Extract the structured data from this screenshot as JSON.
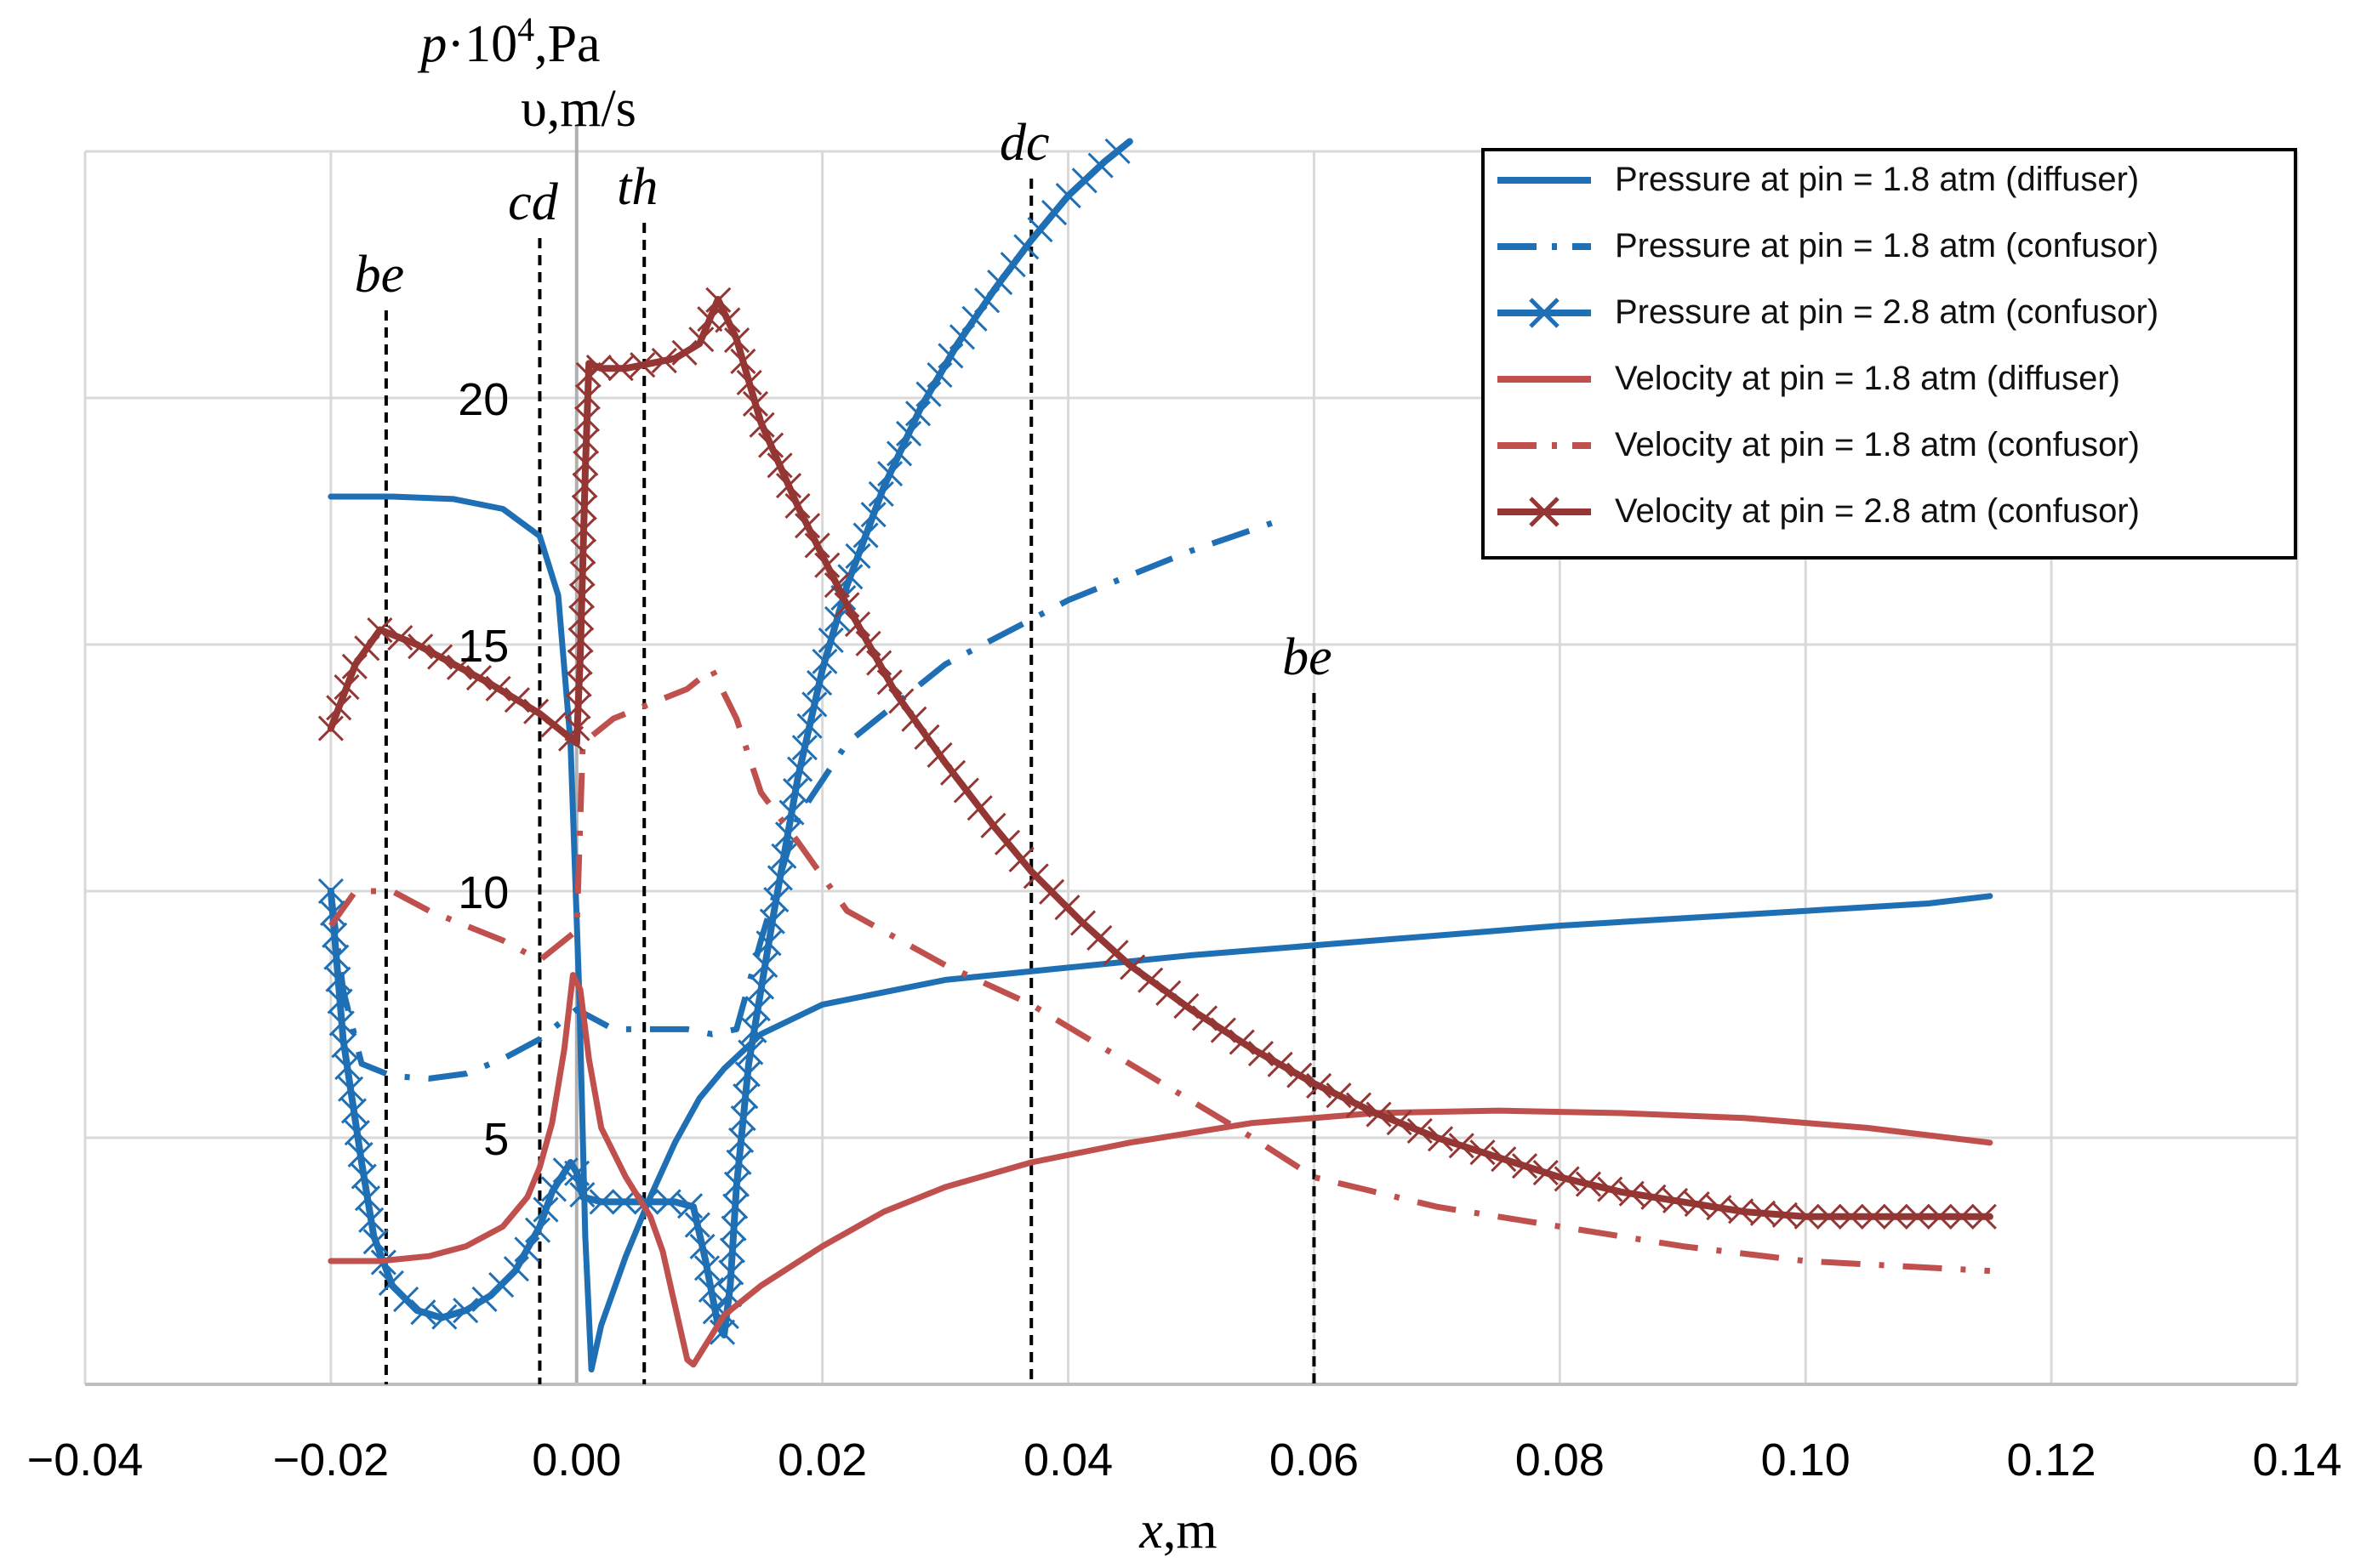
{
  "chart_data": {
    "type": "line",
    "xlabel": {
      "var": "x",
      "unit": ",m"
    },
    "ylabel": {
      "line1": {
        "var": "p",
        "mid": "·10",
        "sup": "4",
        "unit": ",Pa"
      },
      "line2": "υ,m/s"
    },
    "xlim": [
      -0.04,
      0.14
    ],
    "ylim": [
      0,
      25
    ],
    "x_ticks": [
      -0.04,
      -0.02,
      0.0,
      0.02,
      0.04,
      0.06,
      0.08,
      0.1,
      0.12,
      0.14
    ],
    "x_tick_labels": [
      "−0.04",
      "−0.02",
      "0.00",
      "0.02",
      "0.04",
      "0.06",
      "0.08",
      "0.10",
      "0.12",
      "0.14"
    ],
    "y_ticks": [
      5,
      10,
      15,
      20
    ],
    "y_tick_labels": [
      "5",
      "10",
      "15",
      "20"
    ],
    "grid": true,
    "legend_position": "top-right",
    "colors": {
      "blue": "#1f6fb4",
      "red": "#c0504d",
      "darkred": "#943634"
    },
    "annotations": [
      {
        "label": "be",
        "x": -0.0155
      },
      {
        "label": "cd",
        "x": -0.003
      },
      {
        "label": "th",
        "x": 0.0055
      },
      {
        "label": "dc",
        "x": 0.037
      },
      {
        "label": "be",
        "x": 0.06
      }
    ],
    "series": [
      {
        "name": "Pressure at pin = 1.8 atm (diffuser)",
        "color": "#1f6fb4",
        "style": "solid",
        "marker": "none",
        "points": [
          [
            -0.02,
            18.0
          ],
          [
            -0.015,
            18.0
          ],
          [
            -0.01,
            17.95
          ],
          [
            -0.006,
            17.75
          ],
          [
            -0.003,
            17.2
          ],
          [
            -0.0015,
            16.0
          ],
          [
            -0.0005,
            13.0
          ],
          [
            0.0002,
            8.0
          ],
          [
            0.0007,
            3.0
          ],
          [
            0.0012,
            0.3
          ],
          [
            0.002,
            1.2
          ],
          [
            0.004,
            2.6
          ],
          [
            0.006,
            3.8
          ],
          [
            0.008,
            4.9
          ],
          [
            0.01,
            5.8
          ],
          [
            0.012,
            6.4
          ],
          [
            0.015,
            7.1
          ],
          [
            0.02,
            7.7
          ],
          [
            0.03,
            8.2
          ],
          [
            0.04,
            8.45
          ],
          [
            0.05,
            8.7
          ],
          [
            0.06,
            8.9
          ],
          [
            0.07,
            9.1
          ],
          [
            0.08,
            9.3
          ],
          [
            0.09,
            9.45
          ],
          [
            0.1,
            9.6
          ],
          [
            0.11,
            9.75
          ],
          [
            0.115,
            9.9
          ]
        ]
      },
      {
        "name": "Pressure at pin = 1.8 atm (confusor)",
        "color": "#1f6fb4",
        "style": "dashdot",
        "marker": "none",
        "points": [
          [
            -0.02,
            10.0
          ],
          [
            -0.019,
            8.0
          ],
          [
            -0.0175,
            6.5
          ],
          [
            -0.015,
            6.25
          ],
          [
            -0.012,
            6.2
          ],
          [
            -0.009,
            6.3
          ],
          [
            -0.006,
            6.6
          ],
          [
            -0.003,
            7.0
          ],
          [
            0.0,
            7.6
          ],
          [
            0.003,
            7.2
          ],
          [
            0.006,
            7.2
          ],
          [
            0.009,
            7.2
          ],
          [
            0.011,
            7.1
          ],
          [
            0.013,
            7.2
          ],
          [
            0.015,
            9.0
          ],
          [
            0.018,
            11.5
          ],
          [
            0.022,
            13.0
          ],
          [
            0.03,
            14.6
          ],
          [
            0.04,
            15.9
          ],
          [
            0.05,
            16.9
          ],
          [
            0.057,
            17.5
          ]
        ]
      },
      {
        "name": "Pressure at pin = 2.8 atm (confusor)",
        "color": "#1f6fb4",
        "style": "solid",
        "marker": "x",
        "points": [
          [
            -0.02,
            10.0
          ],
          [
            -0.019,
            7.0
          ],
          [
            -0.0175,
            4.5
          ],
          [
            -0.0165,
            3.0
          ],
          [
            -0.015,
            2.0
          ],
          [
            -0.013,
            1.5
          ],
          [
            -0.011,
            1.35
          ],
          [
            -0.009,
            1.5
          ],
          [
            -0.007,
            1.8
          ],
          [
            -0.005,
            2.3
          ],
          [
            -0.003,
            3.2
          ],
          [
            -0.002,
            3.9
          ],
          [
            -0.001,
            4.3
          ],
          [
            -0.0005,
            4.5
          ],
          [
            0.0,
            4.3
          ],
          [
            0.0005,
            3.8
          ],
          [
            0.002,
            3.7
          ],
          [
            0.004,
            3.7
          ],
          [
            0.006,
            3.7
          ],
          [
            0.008,
            3.7
          ],
          [
            0.0095,
            3.6
          ],
          [
            0.0105,
            2.5
          ],
          [
            0.0115,
            1.2
          ],
          [
            0.012,
            1.0
          ],
          [
            0.0125,
            2.0
          ],
          [
            0.013,
            4.0
          ],
          [
            0.014,
            6.5
          ],
          [
            0.016,
            9.5
          ],
          [
            0.018,
            12.3
          ],
          [
            0.02,
            14.5
          ],
          [
            0.022,
            16.2
          ],
          [
            0.025,
            18.2
          ],
          [
            0.028,
            19.8
          ],
          [
            0.031,
            21.1
          ],
          [
            0.034,
            22.2
          ],
          [
            0.037,
            23.2
          ],
          [
            0.04,
            24.1
          ],
          [
            0.043,
            24.8
          ],
          [
            0.045,
            25.2
          ]
        ]
      },
      {
        "name": "Velocity at pin = 1.8 atm (diffuser)",
        "color": "#c0504d",
        "style": "solid",
        "marker": "none",
        "points": [
          [
            -0.02,
            2.5
          ],
          [
            -0.016,
            2.5
          ],
          [
            -0.012,
            2.6
          ],
          [
            -0.009,
            2.8
          ],
          [
            -0.006,
            3.2
          ],
          [
            -0.004,
            3.8
          ],
          [
            -0.003,
            4.4
          ],
          [
            -0.002,
            5.3
          ],
          [
            -0.001,
            6.8
          ],
          [
            -0.0003,
            8.3
          ],
          [
            0.0003,
            8.0
          ],
          [
            0.001,
            6.6
          ],
          [
            0.002,
            5.2
          ],
          [
            0.004,
            4.2
          ],
          [
            0.006,
            3.4
          ],
          [
            0.007,
            2.7
          ],
          [
            0.008,
            1.6
          ],
          [
            0.009,
            0.5
          ],
          [
            0.0095,
            0.4
          ],
          [
            0.0105,
            0.8
          ],
          [
            0.012,
            1.4
          ],
          [
            0.015,
            2.0
          ],
          [
            0.02,
            2.8
          ],
          [
            0.025,
            3.5
          ],
          [
            0.03,
            4.0
          ],
          [
            0.037,
            4.5
          ],
          [
            0.045,
            4.9
          ],
          [
            0.055,
            5.3
          ],
          [
            0.065,
            5.5
          ],
          [
            0.075,
            5.55
          ],
          [
            0.085,
            5.5
          ],
          [
            0.095,
            5.4
          ],
          [
            0.105,
            5.2
          ],
          [
            0.115,
            4.9
          ]
        ]
      },
      {
        "name": "Velocity at pin = 1.8 atm (confusor)",
        "color": "#c0504d",
        "style": "dashdot",
        "marker": "none",
        "points": [
          [
            -0.02,
            9.3
          ],
          [
            -0.018,
            10.0
          ],
          [
            -0.015,
            10.0
          ],
          [
            -0.012,
            9.6
          ],
          [
            -0.009,
            9.3
          ],
          [
            -0.006,
            9.0
          ],
          [
            -0.003,
            8.6
          ],
          [
            0.0,
            9.2
          ],
          [
            0.0005,
            13.0
          ],
          [
            0.003,
            13.5
          ],
          [
            0.006,
            13.8
          ],
          [
            0.009,
            14.1
          ],
          [
            0.011,
            14.5
          ],
          [
            0.013,
            13.5
          ],
          [
            0.015,
            12.0
          ],
          [
            0.018,
            11.0
          ],
          [
            0.022,
            9.6
          ],
          [
            0.03,
            8.5
          ],
          [
            0.037,
            7.7
          ],
          [
            0.045,
            6.5
          ],
          [
            0.055,
            5.0
          ],
          [
            0.06,
            4.2
          ],
          [
            0.07,
            3.6
          ],
          [
            0.08,
            3.2
          ],
          [
            0.09,
            2.8
          ],
          [
            0.1,
            2.5
          ],
          [
            0.115,
            2.3
          ]
        ]
      },
      {
        "name": "Velocity at pin = 2.8 atm (confusor)",
        "color": "#943634",
        "style": "solid",
        "marker": "x",
        "points": [
          [
            -0.02,
            13.3
          ],
          [
            -0.018,
            14.6
          ],
          [
            -0.016,
            15.3
          ],
          [
            -0.013,
            15.0
          ],
          [
            -0.01,
            14.6
          ],
          [
            -0.007,
            14.2
          ],
          [
            -0.005,
            13.9
          ],
          [
            -0.003,
            13.6
          ],
          [
            -0.001,
            13.2
          ],
          [
            0.0,
            13.0
          ],
          [
            0.0003,
            14.8
          ],
          [
            0.0007,
            18.5
          ],
          [
            0.001,
            20.7
          ],
          [
            0.002,
            20.6
          ],
          [
            0.004,
            20.6
          ],
          [
            0.006,
            20.7
          ],
          [
            0.008,
            20.8
          ],
          [
            0.01,
            21.1
          ],
          [
            0.0115,
            22.0
          ],
          [
            0.013,
            21.2
          ],
          [
            0.015,
            19.5
          ],
          [
            0.018,
            17.8
          ],
          [
            0.022,
            15.8
          ],
          [
            0.026,
            14.0
          ],
          [
            0.03,
            12.6
          ],
          [
            0.034,
            11.3
          ],
          [
            0.037,
            10.4
          ],
          [
            0.041,
            9.4
          ],
          [
            0.045,
            8.5
          ],
          [
            0.05,
            7.6
          ],
          [
            0.055,
            6.8
          ],
          [
            0.06,
            6.1
          ],
          [
            0.065,
            5.5
          ],
          [
            0.07,
            5.0
          ],
          [
            0.075,
            4.6
          ],
          [
            0.08,
            4.2
          ],
          [
            0.085,
            3.9
          ],
          [
            0.09,
            3.7
          ],
          [
            0.095,
            3.5
          ],
          [
            0.1,
            3.4
          ],
          [
            0.105,
            3.4
          ],
          [
            0.11,
            3.4
          ],
          [
            0.115,
            3.4
          ]
        ]
      }
    ]
  }
}
